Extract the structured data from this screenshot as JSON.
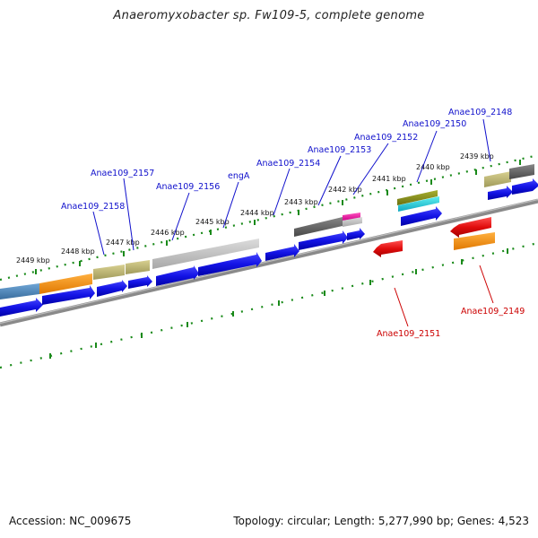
{
  "title": "Anaeromyxobacter sp. Fw109-5, complete genome",
  "footer": {
    "accession": "Accession: NC_009675",
    "summary": "Topology: circular; Length: 5,277,990 bp; Genes: 4,523"
  },
  "colors": {
    "forward_label": "#1010cc",
    "reverse_label": "#cc0000",
    "tick": "#1a8a1a",
    "cds_forward": "#1616e6",
    "cds_reverse": "#e01010",
    "backbone": "#8a8a8a"
  },
  "scale_labels": [
    "2439 kbp",
    "2440 kbp",
    "2441 kbp",
    "2442 kbp",
    "2443 kbp",
    "2444 kbp",
    "2445 kbp",
    "2446 kbp",
    "2447 kbp",
    "2448 kbp",
    "2449 kbp"
  ],
  "gene_labels_forward": [
    "Anae109_2148",
    "Anae109_2150",
    "Anae109_2152",
    "Anae109_2153",
    "Anae109_2154",
    "engA",
    "Anae109_2156",
    "Anae109_2157",
    "Anae109_2158"
  ],
  "gene_labels_reverse": [
    "Anae109_2149",
    "Anae109_2151"
  ]
}
